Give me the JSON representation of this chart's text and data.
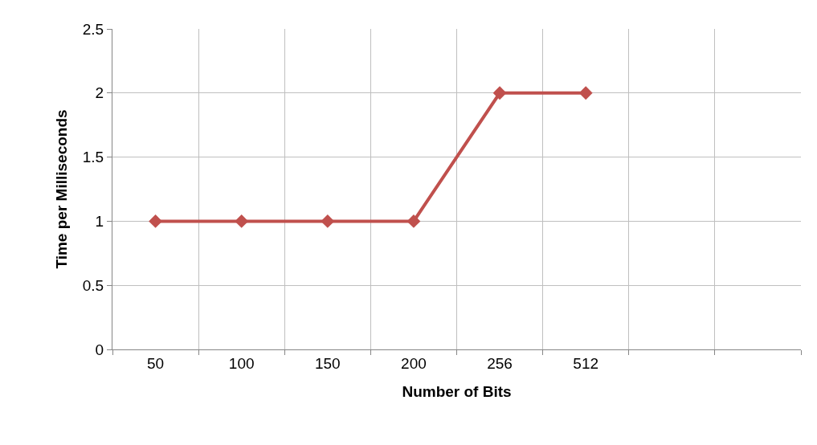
{
  "chart_data": {
    "type": "line",
    "xlabel": "Number of Bits",
    "ylabel": "Time per Milliseconds",
    "categories": [
      "50",
      "100",
      "150",
      "200",
      "256",
      "512",
      null,
      null
    ],
    "series": [
      {
        "color": "#c0504d",
        "values": [
          1,
          1,
          1,
          1,
          2,
          2,
          null,
          null
        ]
      }
    ],
    "ylim": [
      0,
      2.5
    ],
    "yticks": [
      0,
      0.5,
      1,
      1.5,
      2,
      2.5
    ],
    "grid": true,
    "marker": "diamond",
    "line_style": "solid"
  }
}
